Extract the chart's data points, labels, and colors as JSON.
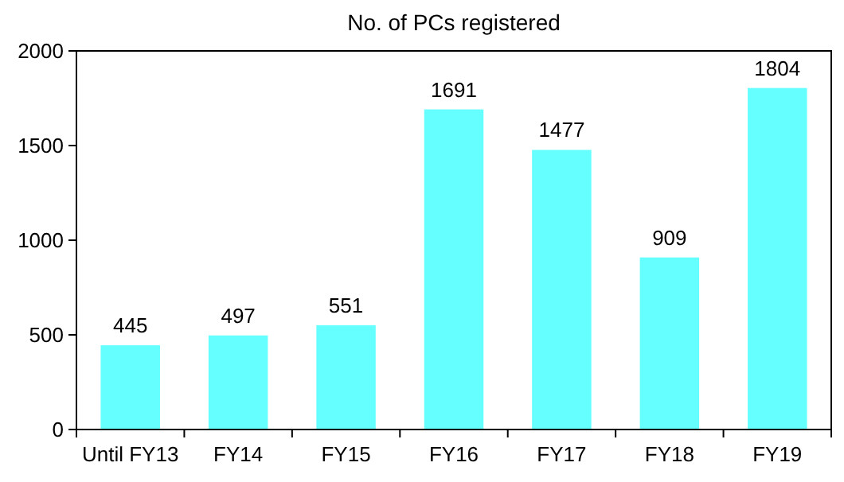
{
  "chart_data": {
    "type": "bar",
    "title": "No. of PCs registered",
    "categories": [
      "Until FY13",
      "FY14",
      "FY15",
      "FY16",
      "FY17",
      "FY18",
      "FY19"
    ],
    "values": [
      445,
      497,
      551,
      1691,
      1477,
      909,
      1804
    ],
    "color": "#66ffff",
    "ylim": [
      0,
      2000
    ],
    "yticks": [
      0,
      500,
      1000,
      1500,
      2000
    ],
    "grid": false,
    "data_labels": true
  }
}
